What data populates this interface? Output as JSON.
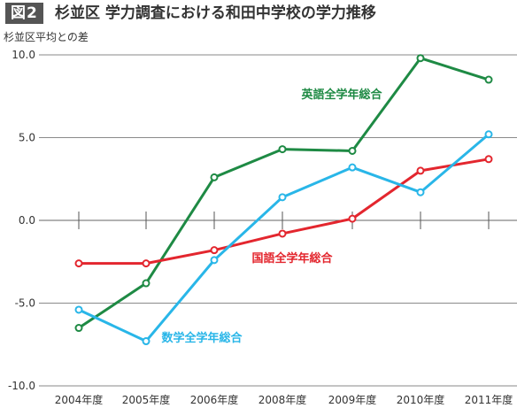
{
  "figure_label": "図2",
  "chart_data": {
    "type": "line",
    "title": "杉並区 学力調査における和田中学校の学力推移",
    "ylabel": "杉並区平均との差",
    "xlabel": "",
    "categories": [
      "2004年度",
      "2005年度",
      "2006年度",
      "2008年度",
      "2009年度",
      "2010年度",
      "2011年度"
    ],
    "y_ticks": [
      "10.0",
      "5.0",
      "0.0",
      "-5.0",
      "-10.0"
    ],
    "ylim": [
      -10,
      10
    ],
    "grid": true,
    "series": [
      {
        "name": "英語全学年総合",
        "color": "#1e8a44",
        "values": [
          -6.5,
          -3.8,
          2.6,
          4.3,
          4.2,
          9.8,
          8.5
        ]
      },
      {
        "name": "国語全学年総合",
        "color": "#e3262e",
        "values": [
          -2.6,
          -2.6,
          -1.8,
          -0.8,
          0.1,
          3.0,
          3.7
        ]
      },
      {
        "name": "数学全学年総合",
        "color": "#29b6e8",
        "values": [
          -5.4,
          -7.3,
          -2.4,
          1.4,
          3.2,
          1.7,
          5.2
        ]
      }
    ]
  }
}
